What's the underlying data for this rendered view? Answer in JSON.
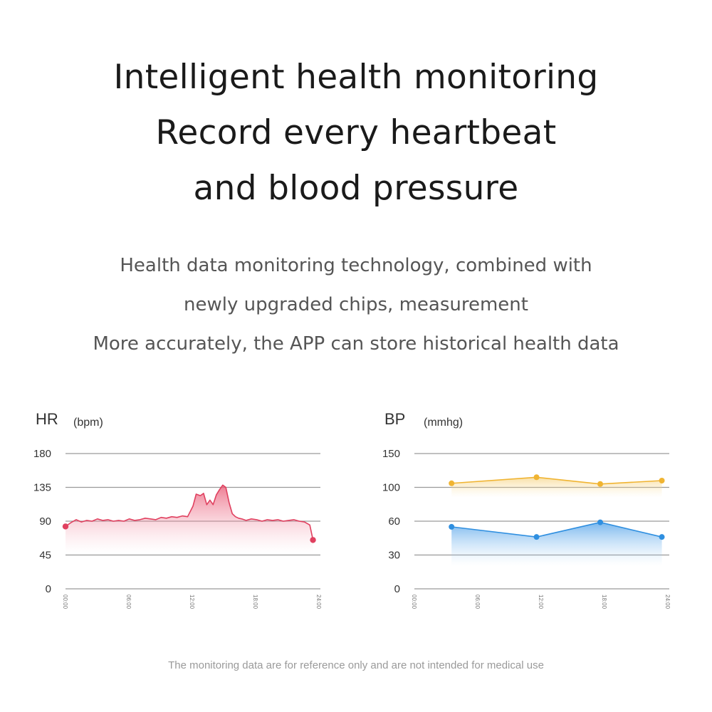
{
  "header": {
    "lines": [
      "Intelligent health monitoring",
      "Record every heartbeat",
      "and blood pressure"
    ]
  },
  "subtitle": {
    "lines": [
      "Health data monitoring technology, combined with",
      "newly upgraded chips, measurement",
      "More accurately, the APP can store historical health data"
    ]
  },
  "disclaimer": "The monitoring data are for reference only and are not intended for medical use",
  "chart_data": [
    {
      "type": "area",
      "title": "HR",
      "unit": "(bpm)",
      "yticks": [
        0,
        45,
        90,
        135,
        180
      ],
      "ylim": [
        0,
        180
      ],
      "xticks": [
        "00:00",
        "06:00",
        "12:00",
        "18:00",
        "24:00"
      ],
      "xlim": [
        0,
        24
      ],
      "colors": {
        "line": "#e0405f",
        "fill": "#f28ba0",
        "point": "#e0405f"
      },
      "grid": true,
      "series": [
        {
          "x": [
            0,
            0.5,
            1,
            1.5,
            2,
            2.5,
            3,
            3.5,
            4,
            4.5,
            5,
            5.5,
            6,
            6.5,
            7,
            7.5,
            8,
            8.5,
            9,
            9.5,
            10,
            10.5,
            11,
            11.5,
            12,
            12.3,
            12.7,
            13,
            13.3,
            13.6,
            13.9,
            14.2,
            14.5,
            14.8,
            15.1,
            15.4,
            15.7,
            16,
            16.3,
            16.6,
            17,
            17.5,
            18,
            18.5,
            19,
            19.5,
            20,
            20.5,
            21,
            21.5,
            22,
            22.5,
            23,
            23.3
          ],
          "values": [
            83,
            88,
            92,
            89,
            91,
            90,
            93,
            91,
            92,
            90,
            91,
            90,
            93,
            91,
            92,
            94,
            93,
            92,
            95,
            94,
            96,
            95,
            97,
            96,
            110,
            126,
            124,
            127,
            112,
            118,
            112,
            125,
            132,
            138,
            135,
            115,
            100,
            96,
            94,
            93,
            91,
            93,
            92,
            90,
            92,
            91,
            92,
            90,
            91,
            92,
            90,
            89,
            85,
            65
          ],
          "markers": [
            {
              "x": 0,
              "y": 83
            },
            {
              "x": 23.3,
              "y": 65
            }
          ]
        }
      ]
    },
    {
      "type": "line",
      "title": "BP",
      "unit": "(mmhg)",
      "yticks": [
        0,
        30,
        60,
        100,
        150
      ],
      "ylim": [
        0,
        150
      ],
      "xticks": [
        "00:00",
        "06:00",
        "12:00",
        "18:00",
        "24:00"
      ],
      "xlim": [
        0,
        24
      ],
      "grid": true,
      "series": [
        {
          "x": [
            3.5,
            11.5,
            17.5,
            23.3
          ],
          "values": [
            106,
            115,
            105,
            110
          ],
          "color": "#f0b432",
          "fill": "#f7d27a"
        },
        {
          "x": [
            3.5,
            11.5,
            17.5,
            23.3
          ],
          "values": [
            55,
            46,
            59,
            46
          ],
          "color": "#2f8fe0",
          "fill": "#7cbaf2"
        }
      ]
    }
  ]
}
